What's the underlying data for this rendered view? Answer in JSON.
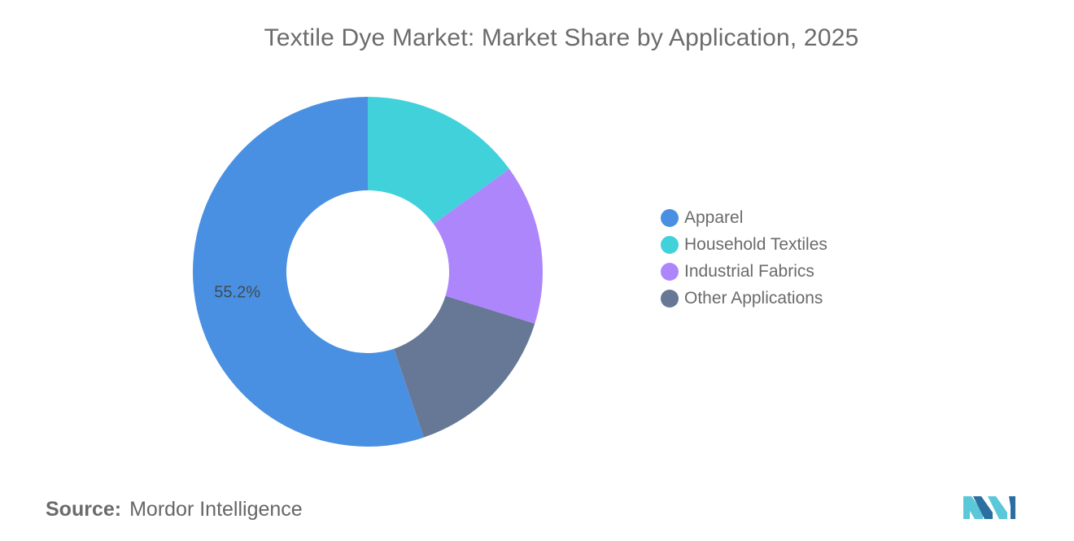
{
  "chart_data": {
    "type": "donut",
    "title": "Textile Dye Market: Market Share by Application, 2025",
    "slices": [
      {
        "name": "Apparel",
        "value": 55.2,
        "color": "#4a90e2",
        "label": "55.2%"
      },
      {
        "name": "Household Textiles",
        "value": 15.0,
        "color": "#41d1db",
        "label": ""
      },
      {
        "name": "Industrial Fabrics",
        "value": 14.8,
        "color": "#ae86fc",
        "label": ""
      },
      {
        "name": "Other Applications",
        "value": 15.0,
        "color": "#667896",
        "label": ""
      }
    ],
    "legend_position": "right"
  },
  "source": {
    "label": "Source:",
    "name": "Mordor Intelligence"
  },
  "logo": {
    "name": "mordor-intelligence-logo",
    "colors": [
      "#5ac8d8",
      "#2a6fa0"
    ]
  }
}
